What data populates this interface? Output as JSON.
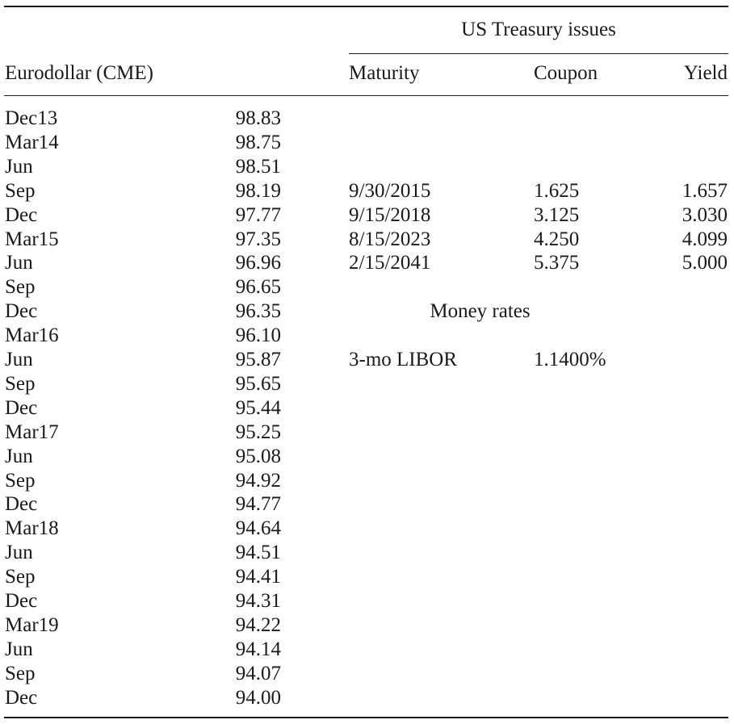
{
  "headers": {
    "treasury_group": "US Treasury issues",
    "eurodollar": "Eurodollar (CME)",
    "maturity": "Maturity",
    "coupon": "Coupon",
    "yield": "Yield"
  },
  "eurodollar_rows": [
    {
      "contract": "Dec13",
      "price": "98.83"
    },
    {
      "contract": "Mar14",
      "price": "98.75"
    },
    {
      "contract": "Jun",
      "price": "98.51"
    },
    {
      "contract": "Sep",
      "price": "98.19"
    },
    {
      "contract": "Dec",
      "price": "97.77"
    },
    {
      "contract": "Mar15",
      "price": "97.35"
    },
    {
      "contract": "Jun",
      "price": "96.96"
    },
    {
      "contract": "Sep",
      "price": "96.65"
    },
    {
      "contract": "Dec",
      "price": "96.35"
    },
    {
      "contract": "Mar16",
      "price": "96.10"
    },
    {
      "contract": "Jun",
      "price": "95.87"
    },
    {
      "contract": "Sep",
      "price": "95.65"
    },
    {
      "contract": "Dec",
      "price": "95.44"
    },
    {
      "contract": "Mar17",
      "price": "95.25"
    },
    {
      "contract": "Jun",
      "price": "95.08"
    },
    {
      "contract": "Sep",
      "price": "94.92"
    },
    {
      "contract": "Dec",
      "price": "94.77"
    },
    {
      "contract": "Mar18",
      "price": "94.64"
    },
    {
      "contract": "Jun",
      "price": "94.51"
    },
    {
      "contract": "Sep",
      "price": "94.41"
    },
    {
      "contract": "Dec",
      "price": "94.31"
    },
    {
      "contract": "Mar19",
      "price": "94.22"
    },
    {
      "contract": "Jun",
      "price": "94.14"
    },
    {
      "contract": "Sep",
      "price": "94.07"
    },
    {
      "contract": "Dec",
      "price": "94.00"
    }
  ],
  "treasury_rows": [
    {
      "maturity": "9/30/2015",
      "coupon": "1.625",
      "yield": "1.657"
    },
    {
      "maturity": "9/15/2018",
      "coupon": "3.125",
      "yield": "3.030"
    },
    {
      "maturity": "8/15/2023",
      "coupon": "4.250",
      "yield": "4.099"
    },
    {
      "maturity": "2/15/2041",
      "coupon": "5.375",
      "yield": "5.000"
    }
  ],
  "money_rates": {
    "title": "Money rates",
    "label": "3-mo LIBOR",
    "value": "1.1400%"
  }
}
